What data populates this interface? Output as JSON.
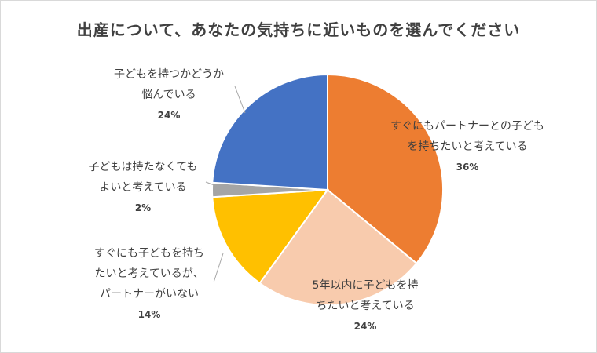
{
  "chart_data": {
    "type": "pie",
    "title": "出産について、あなたの気持ちに近いものを選んでください",
    "slices": [
      {
        "label_lines": [
          "すぐにもパートナーとの子ども",
          "を持ちたいと考えている"
        ],
        "value": 36,
        "value_label": "36%",
        "color": "#ED7D31"
      },
      {
        "label_lines": [
          "5年以内に子どもを持",
          "ちたいと考えている"
        ],
        "value": 24,
        "value_label": "24%",
        "color": "#F8CBAD"
      },
      {
        "label_lines": [
          "すぐにも子どもを持ち",
          "たいと考えているが、",
          "パートナーがいない"
        ],
        "value": 14,
        "value_label": "14%",
        "color": "#FFC000"
      },
      {
        "label_lines": [
          "子どもは持たなくても",
          "よいと考えている"
        ],
        "value": 2,
        "value_label": "2%",
        "color": "#A5A5A5"
      },
      {
        "label_lines": [
          "子どもを持つかどうか",
          "悩んでいる"
        ],
        "value": 24,
        "value_label": "24%",
        "color": "#4472C4"
      }
    ]
  }
}
